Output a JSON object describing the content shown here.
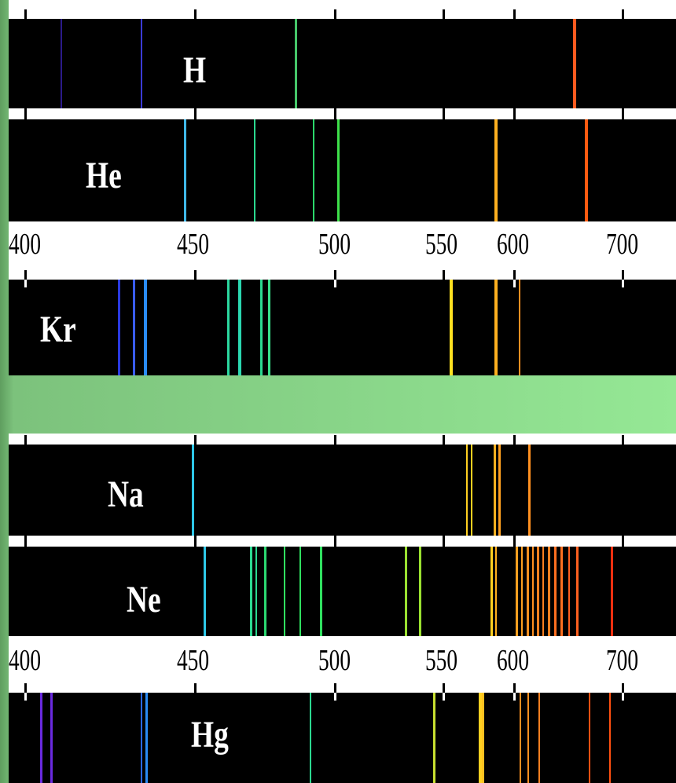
{
  "colors": {
    "background": "#95e895",
    "strip": "#000000",
    "label": "#ffffff"
  },
  "scale": {
    "ticks": [
      "400",
      "450",
      "500",
      "550",
      "600",
      "700"
    ]
  },
  "spectra": [
    {
      "element": "H",
      "lines": [
        {
          "color": "#2b1a8a"
        },
        {
          "color": "#3b3bd6"
        },
        {
          "color": "#46c76a"
        },
        {
          "color": "#ff5a1f"
        }
      ]
    },
    {
      "element": "He",
      "lines": [
        {
          "color": "#3fb8e8"
        },
        {
          "color": "#2bd88f"
        },
        {
          "color": "#2bd86a"
        },
        {
          "color": "#3ee04a"
        },
        {
          "color": "#ffb020"
        },
        {
          "color": "#ff5a10"
        }
      ]
    },
    {
      "element": "Kr",
      "lines": [
        {
          "color": "#2a3ae0"
        },
        {
          "color": "#3a5cf0"
        },
        {
          "color": "#2a8cf5"
        },
        {
          "color": "#2bd8a0"
        },
        {
          "color": "#2bd8b0"
        },
        {
          "color": "#2bd890"
        },
        {
          "color": "#38e08a"
        },
        {
          "color": "#ffe020"
        },
        {
          "color": "#ffb020"
        },
        {
          "color": "#ff9020"
        }
      ]
    },
    {
      "element": "Na",
      "lines": [
        {
          "color": "#2ec8e8"
        },
        {
          "color": "#ffd020"
        },
        {
          "color": "#ffb020"
        },
        {
          "color": "#ffa020"
        },
        {
          "color": "#ff9020"
        }
      ]
    },
    {
      "element": "Ne",
      "lines": [
        {
          "color": "#2ec8e8"
        },
        {
          "color": "#2bd890"
        },
        {
          "color": "#2bd870"
        },
        {
          "color": "#30e060"
        },
        {
          "color": "#9ae030"
        },
        {
          "color": "#ffd020"
        },
        {
          "color": "#ffa020"
        },
        {
          "color": "#ff8020"
        },
        {
          "color": "#ff3010"
        }
      ]
    },
    {
      "element": "Hg",
      "lines": [
        {
          "color": "#6a2ae0"
        },
        {
          "color": "#2a6af0"
        },
        {
          "color": "#2bd890"
        },
        {
          "color": "#c8e030"
        },
        {
          "color": "#ffd020"
        },
        {
          "color": "#ff9020"
        },
        {
          "color": "#ff5010"
        }
      ]
    }
  ]
}
